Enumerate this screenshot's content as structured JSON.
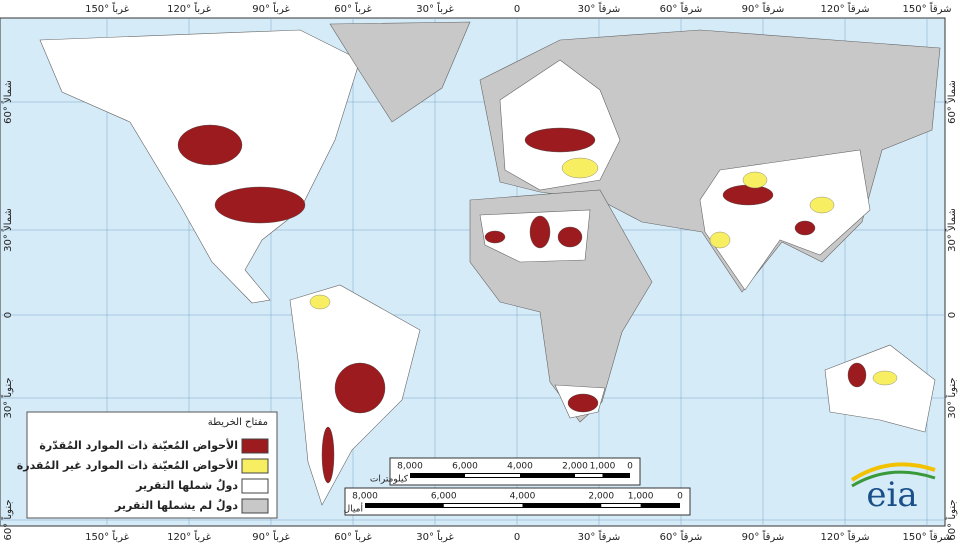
{
  "map": {
    "longitude_labels": [
      "150° غرباً",
      "120° غرباً",
      "90° غرباً",
      "60° غرباً",
      "30° غرباً",
      "0",
      "30° شرقاً",
      "60° شرقاً",
      "90° شرقاً",
      "120° شرقاً",
      "150° شرقاً"
    ],
    "latitude_labels": [
      "60° شمالاً",
      "30° شمالاً",
      "0",
      "30° جنوباً",
      "60° جنوباً"
    ]
  },
  "legend": {
    "title": "مفتاح الخريطة",
    "items": [
      "الأحواض المُعيّنة ذات الموارد المُقدّرة",
      "الأحواض المُعيّنة ذات الموارد غير المُقدرة",
      "دولٌ شملها التقرير",
      "دولٌ لم يشملها التقرير"
    ]
  },
  "scale_bars": [
    {
      "unit": "كيلومترات",
      "ticks": [
        "8,000",
        "6,000",
        "4,000",
        "2,000",
        "1,000",
        "0"
      ]
    },
    {
      "unit": "أميال",
      "ticks": [
        "8,000",
        "6,000",
        "4,000",
        "2,000",
        "1,000",
        "0"
      ]
    }
  ],
  "logo": "eia"
}
